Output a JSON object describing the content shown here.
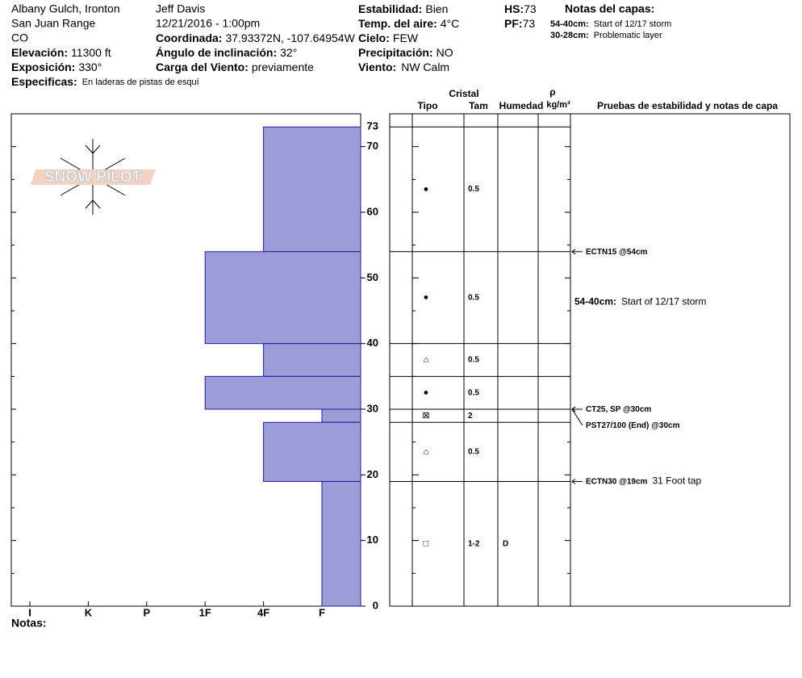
{
  "header": {
    "location": "Albany Gulch, Ironton",
    "range": "San Juan Range",
    "state": "CO",
    "elevation_label": "Elevación:",
    "elevation": "11300 ft",
    "aspect_label": "Exposición:",
    "aspect": "330°",
    "specifics_label": "Especificas:",
    "specifics": "En laderas de pistas de esquí",
    "observer": "Jeff Davis",
    "datetime": "12/21/2016 - 1:00pm",
    "coord_label": "Coordinada:",
    "coord": "37.93372N, -107.64954W",
    "slope_label": "Ángulo de inclinación:",
    "slope": "32°",
    "wind_load_label": "Carga del Viento:",
    "wind_load": "previamente",
    "stability_label": "Estabilidad:",
    "stability": "Bien",
    "air_temp_label": "Temp. del aire:",
    "air_temp": "4°C",
    "sky_label": "Cielo:",
    "sky": "FEW",
    "precip_label": "Precipitación:",
    "precip": "NO",
    "wind_label": "Viento:",
    "wind": "NW Calm",
    "hs_label": "HS:",
    "hs": 73,
    "pf_label": "PF:",
    "pf": 73,
    "layer_notes_title": "Notas del capas:",
    "layer_notes": [
      {
        "range": "54-40cm:",
        "text": "Start of 12/17 storm"
      },
      {
        "range": "30-28cm:",
        "text": "Problematic layer"
      }
    ]
  },
  "logo": "SNOW PILOT",
  "profile": {
    "depth_lim": [
      0,
      75
    ],
    "depth_ticks": [
      0,
      10,
      20,
      30,
      40,
      50,
      60,
      70
    ],
    "depth_minor_ticks": [
      5,
      15,
      25,
      35,
      45,
      55,
      65
    ],
    "hardness_scale": [
      "I",
      "K",
      "P",
      "1F",
      "4F",
      "F"
    ],
    "bar_color": "#9c9cd6",
    "bar_edge": "#1c1ca0",
    "layers": [
      {
        "top": 73,
        "bottom": 54,
        "hardness": "4F",
        "grain": "●",
        "size": 0.5
      },
      {
        "top": 54,
        "bottom": 40,
        "hardness": "1F",
        "grain": "●",
        "size": 0.5,
        "note": {
          "range": "54-40cm:",
          "text": "Start of 12/17 storm"
        }
      },
      {
        "top": 40,
        "bottom": 35,
        "hardness": "4F",
        "grain": "⌂",
        "size": 0.5
      },
      {
        "top": 35,
        "bottom": 30,
        "hardness": "1F",
        "grain": "●",
        "size": 0.5
      },
      {
        "top": 30,
        "bottom": 28,
        "hardness": "F",
        "grain": "⊠",
        "size": 2
      },
      {
        "top": 28,
        "bottom": 19,
        "hardness": "4F",
        "grain": "⌂",
        "size": 0.5
      },
      {
        "top": 19,
        "bottom": 0,
        "hardness": "F",
        "grain": "□",
        "size": "1-2",
        "moisture": "D"
      }
    ],
    "notes_label": "Notas:"
  },
  "table": {
    "cristal": "Cristal",
    "tipo": "Tipo",
    "tam": "Tam",
    "humedad": "Humedad",
    "rho": "ρ",
    "density_unit": "kg/m³",
    "tests_header": "Pruebas de estabilidad y notas de capa",
    "tests": [
      {
        "depth": 54,
        "text": "ECTN15 @54cm"
      },
      {
        "depth": 30,
        "text": "CT25, SP @30cm"
      },
      {
        "depth": 30,
        "text": "PST27/100 (End) @30cm"
      },
      {
        "depth": 19,
        "text": "ECTN30 @19cm",
        "comment": "31 Foot tap"
      }
    ]
  }
}
